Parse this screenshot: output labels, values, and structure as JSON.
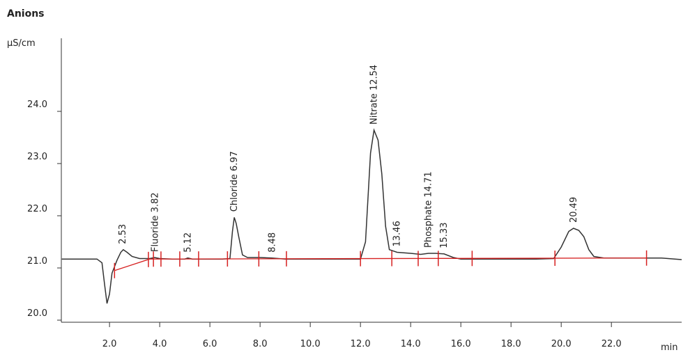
{
  "chart_data": {
    "type": "line",
    "title": "Anions",
    "ylabel": "µS/cm",
    "xlabel": "min",
    "xlim": [
      0.08,
      24.8
    ],
    "ylim": [
      20.0,
      25.4
    ],
    "xticks": [
      {
        "value": 2,
        "label": "2.0"
      },
      {
        "value": 4,
        "label": "4.0"
      },
      {
        "value": 6,
        "label": "6.0"
      },
      {
        "value": 8,
        "label": "8.0"
      },
      {
        "value": 10,
        "label": "10.0"
      },
      {
        "value": 12,
        "label": "12.0"
      },
      {
        "value": 14,
        "label": "14.0"
      },
      {
        "value": 16,
        "label": "16.0"
      },
      {
        "value": 18,
        "label": "18.0"
      },
      {
        "value": 20,
        "label": "20.0"
      },
      {
        "value": 22,
        "label": "22.0"
      }
    ],
    "yticks": [
      {
        "value": 20,
        "label": "20.0"
      },
      {
        "value": 21,
        "label": "21.0"
      },
      {
        "value": 22,
        "label": "22.0"
      },
      {
        "value": 23,
        "label": "23.0"
      },
      {
        "value": 24,
        "label": "24.0"
      }
    ],
    "series": [
      {
        "color": "#333333",
        "x": [
          0.1,
          1.5,
          1.7,
          1.8,
          1.9,
          2.0,
          2.1,
          2.3,
          2.45,
          2.55,
          2.7,
          2.9,
          3.2,
          3.6,
          3.8,
          4.0,
          4.5,
          5.0,
          5.12,
          5.3,
          6.5,
          6.8,
          6.9,
          6.97,
          7.05,
          7.15,
          7.3,
          7.5,
          8.0,
          8.48,
          9.0,
          12.0,
          12.2,
          12.4,
          12.54,
          12.7,
          12.85,
          13.0,
          13.15,
          13.46,
          14.0,
          14.4,
          14.71,
          15.0,
          15.33,
          15.7,
          16.0,
          19.0,
          19.7,
          20.0,
          20.3,
          20.49,
          20.7,
          20.9,
          21.1,
          21.3,
          21.7,
          23.0,
          24.0,
          24.8
        ],
        "values": [
          21.17,
          21.17,
          21.1,
          20.7,
          20.32,
          20.5,
          20.9,
          21.15,
          21.3,
          21.35,
          21.3,
          21.22,
          21.18,
          21.18,
          21.2,
          21.18,
          21.17,
          21.17,
          21.19,
          21.17,
          21.17,
          21.18,
          21.7,
          21.97,
          21.85,
          21.6,
          21.25,
          21.2,
          21.2,
          21.19,
          21.17,
          21.17,
          21.5,
          23.2,
          23.64,
          23.45,
          22.8,
          21.8,
          21.35,
          21.3,
          21.28,
          21.26,
          21.28,
          21.28,
          21.27,
          21.2,
          21.17,
          21.17,
          21.18,
          21.4,
          21.7,
          21.76,
          21.72,
          21.6,
          21.35,
          21.22,
          21.19,
          21.19,
          21.19,
          21.16
        ]
      }
    ],
    "baseline": {
      "color": "#d62020",
      "x": [
        2.2,
        3.6,
        23.4
      ],
      "values": [
        20.95,
        21.17,
        21.19
      ]
    },
    "markers": {
      "color": "#d62020",
      "x": [
        2.2,
        3.55,
        3.75,
        4.05,
        4.8,
        5.55,
        6.7,
        7.95,
        9.05,
        12.0,
        13.25,
        14.3,
        15.1,
        16.45,
        19.75,
        23.4
      ]
    },
    "annotations": [
      {
        "text": "2.53",
        "x": 2.53
      },
      {
        "text": "Fluoride 3.82",
        "x": 3.82
      },
      {
        "text": "5.12",
        "x": 5.12
      },
      {
        "text": "Chloride 6.97",
        "x": 6.97
      },
      {
        "text": "8.48",
        "x": 8.48
      },
      {
        "text": "Nitrate 12.54",
        "x": 12.54
      },
      {
        "text": "13.46",
        "x": 13.46
      },
      {
        "text": "Phosphate 14.71",
        "x": 14.71
      },
      {
        "text": "15.33",
        "x": 15.33
      },
      {
        "text": "20.49",
        "x": 20.49
      }
    ]
  }
}
